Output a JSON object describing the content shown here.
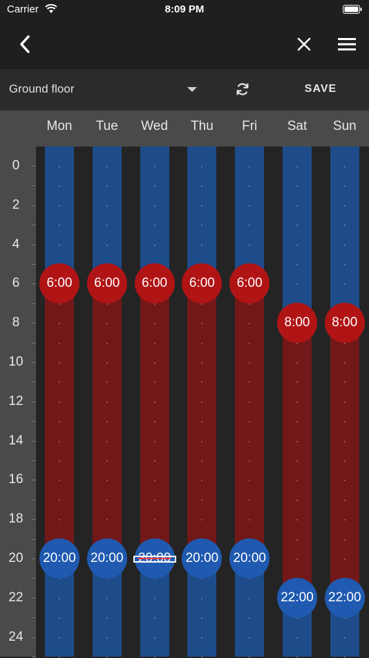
{
  "status_bar": {
    "carrier": "Carrier",
    "time": "8:09 PM"
  },
  "toolbar": {
    "floor": "Ground floor",
    "save_label": "SAVE"
  },
  "days": [
    "Mon",
    "Tue",
    "Wed",
    "Thu",
    "Fri",
    "Sat",
    "Sun"
  ],
  "hours": [
    "0",
    "2",
    "4",
    "6",
    "8",
    "10",
    "12",
    "14",
    "16",
    "18",
    "20",
    "22",
    "24"
  ],
  "colors": {
    "cool_band": "#1e4c8a",
    "warm_band": "#731819",
    "cool_handle": "#1f5ab0",
    "warm_handle": "#b01415"
  },
  "schedule": [
    {
      "day": "Mon",
      "on": "6:00",
      "off": "20:00",
      "on_hour": 6,
      "off_hour": 20
    },
    {
      "day": "Tue",
      "on": "6:00",
      "off": "20:00",
      "on_hour": 6,
      "off_hour": 20
    },
    {
      "day": "Wed",
      "on": "6:00",
      "off": "20:00",
      "on_hour": 6,
      "off_hour": 20,
      "editing": true
    },
    {
      "day": "Thu",
      "on": "6:00",
      "off": "20:00",
      "on_hour": 6,
      "off_hour": 20
    },
    {
      "day": "Fri",
      "on": "6:00",
      "off": "20:00",
      "on_hour": 6,
      "off_hour": 20
    },
    {
      "day": "Sat",
      "on": "8:00",
      "off": "22:00",
      "on_hour": 8,
      "off_hour": 22
    },
    {
      "day": "Sun",
      "on": "8:00",
      "off": "22:00",
      "on_hour": 8,
      "off_hour": 22
    }
  ],
  "icons": {
    "back": "chevron-left-icon",
    "close": "close-icon",
    "menu": "hamburger-menu-icon",
    "refresh": "refresh-icon",
    "dropdown": "dropdown-arrow-icon"
  }
}
